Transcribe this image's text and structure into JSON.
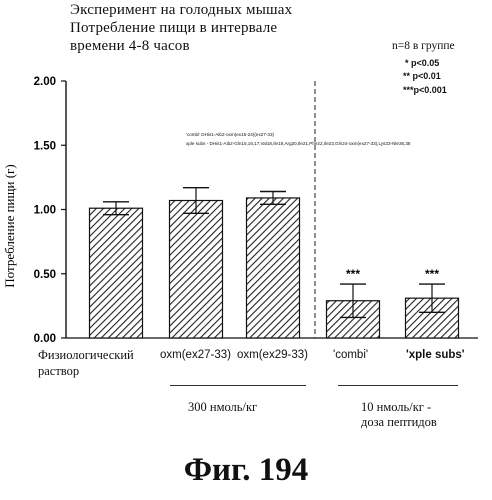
{
  "title_lines": [
    "Эксперимент на голодных мышах",
    "Потребление пищи в интервале",
    "времени 4-8 часов"
  ],
  "stats_legend": {
    "n": "n=8 в группе",
    "p1": "* p<0.05",
    "p2": "** p<0.01",
    "p3": "***p<0.001"
  },
  "definitions": [
    "'combi'  DHis1-Aib2-oxm(ex15-24)(ex27-33)",
    "xple subs - DHis1-Aib2-Gln15,16,17,Val18,Ile19,Arg20,Ile21,Phe22,Ile23,Gln24-oxm(ex27-33),Lys33-Nle36,38"
  ],
  "group_labels": {
    "left": "300 нмоль/кг",
    "right_line1": "10 нмоль/кг -",
    "right_line2": "доза пептидов"
  },
  "figure_label": "Фиг.  194",
  "chart_data": {
    "type": "bar",
    "categories": [
      "Физиологический раствор",
      "oxm(ex27-33)",
      "oxm(ex29-33)",
      "'combi'",
      "'xple subs'"
    ],
    "values": [
      1.01,
      1.07,
      1.09,
      0.29,
      0.31
    ],
    "errors": [
      0.05,
      0.1,
      0.05,
      0.13,
      0.11
    ],
    "significance": [
      "",
      "",
      "",
      "***",
      "***"
    ],
    "ylabel": "Потребление пищи (г)",
    "xlabel": "",
    "ylim": [
      0,
      2
    ],
    "yticks": [
      "0.00",
      "0.50",
      "1.00",
      "1.50",
      "2.00"
    ],
    "ytick_values": [
      0,
      0.5,
      1.0,
      1.5,
      2.0
    ],
    "fill": "hatched",
    "divider_after_index": 2
  }
}
